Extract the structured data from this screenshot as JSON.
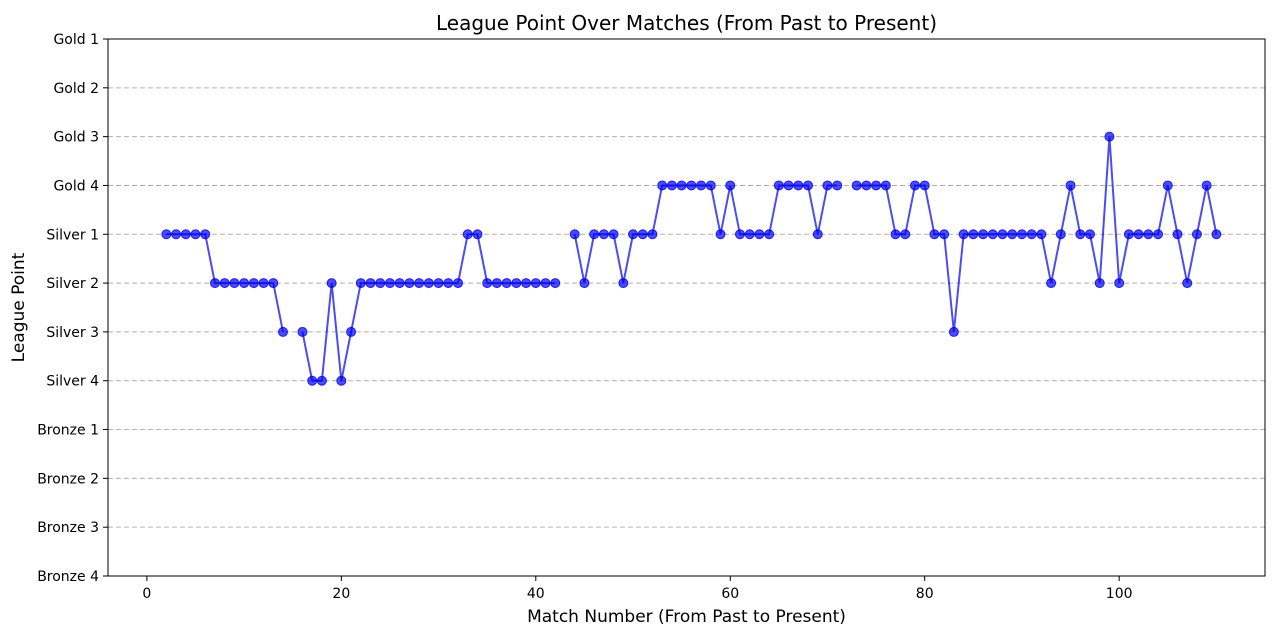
{
  "chart_data": {
    "type": "line",
    "title": "League Point Over Matches (From Past to Present)",
    "xlabel": "Match Number (From Past to Present)",
    "ylabel": "League Point",
    "xlim": [
      -4,
      115
    ],
    "ylim": [
      0,
      11
    ],
    "xticks": [
      0,
      20,
      40,
      60,
      80,
      100
    ],
    "yticks": [
      {
        "value": 0,
        "label": "Bronze 4"
      },
      {
        "value": 1,
        "label": "Bronze 3"
      },
      {
        "value": 2,
        "label": "Bronze 2"
      },
      {
        "value": 3,
        "label": "Bronze 1"
      },
      {
        "value": 4,
        "label": "Silver 4"
      },
      {
        "value": 5,
        "label": "Silver 3"
      },
      {
        "value": 6,
        "label": "Silver 2"
      },
      {
        "value": 7,
        "label": "Silver 1"
      },
      {
        "value": 8,
        "label": "Gold 4"
      },
      {
        "value": 9,
        "label": "Gold 3"
      },
      {
        "value": 10,
        "label": "Gold 2"
      },
      {
        "value": 11,
        "label": "Gold 1"
      }
    ],
    "grid": {
      "y": true,
      "x": false,
      "style": "dashed"
    },
    "series": [
      {
        "color": "#0000ee",
        "marker": "circle",
        "segments": [
          [
            [
              2,
              7
            ],
            [
              3,
              7
            ],
            [
              4,
              7
            ],
            [
              5,
              7
            ],
            [
              6,
              7
            ],
            [
              7,
              6
            ],
            [
              8,
              6
            ],
            [
              9,
              6
            ],
            [
              10,
              6
            ],
            [
              11,
              6
            ],
            [
              12,
              6
            ],
            [
              13,
              6
            ],
            [
              14,
              5
            ]
          ],
          [
            [
              16,
              5
            ],
            [
              17,
              4
            ],
            [
              18,
              4
            ],
            [
              19,
              6
            ],
            [
              20,
              4
            ],
            [
              21,
              5
            ],
            [
              22,
              6
            ],
            [
              23,
              6
            ],
            [
              24,
              6
            ],
            [
              25,
              6
            ],
            [
              26,
              6
            ],
            [
              27,
              6
            ],
            [
              28,
              6
            ],
            [
              29,
              6
            ],
            [
              30,
              6
            ],
            [
              31,
              6
            ],
            [
              32,
              6
            ],
            [
              33,
              7
            ],
            [
              34,
              7
            ],
            [
              35,
              6
            ],
            [
              36,
              6
            ],
            [
              37,
              6
            ],
            [
              38,
              6
            ],
            [
              39,
              6
            ],
            [
              40,
              6
            ],
            [
              41,
              6
            ],
            [
              42,
              6
            ]
          ],
          [
            [
              44,
              7
            ],
            [
              45,
              6
            ],
            [
              46,
              7
            ],
            [
              47,
              7
            ],
            [
              48,
              7
            ],
            [
              49,
              6
            ],
            [
              50,
              7
            ],
            [
              51,
              7
            ],
            [
              52,
              7
            ],
            [
              53,
              8
            ],
            [
              54,
              8
            ],
            [
              55,
              8
            ],
            [
              56,
              8
            ],
            [
              57,
              8
            ],
            [
              58,
              8
            ],
            [
              59,
              7
            ],
            [
              60,
              8
            ],
            [
              61,
              7
            ],
            [
              62,
              7
            ],
            [
              63,
              7
            ],
            [
              64,
              7
            ],
            [
              65,
              8
            ],
            [
              66,
              8
            ],
            [
              67,
              8
            ],
            [
              68,
              8
            ],
            [
              69,
              7
            ],
            [
              70,
              8
            ],
            [
              71,
              8
            ]
          ],
          [
            [
              73,
              8
            ],
            [
              74,
              8
            ],
            [
              75,
              8
            ],
            [
              76,
              8
            ],
            [
              77,
              7
            ],
            [
              78,
              7
            ],
            [
              79,
              8
            ],
            [
              80,
              8
            ],
            [
              81,
              7
            ],
            [
              82,
              7
            ],
            [
              83,
              5
            ],
            [
              84,
              7
            ],
            [
              85,
              7
            ],
            [
              86,
              7
            ],
            [
              87,
              7
            ],
            [
              88,
              7
            ],
            [
              89,
              7
            ],
            [
              90,
              7
            ],
            [
              91,
              7
            ],
            [
              92,
              7
            ],
            [
              93,
              6
            ],
            [
              94,
              7
            ],
            [
              95,
              8
            ],
            [
              96,
              7
            ],
            [
              97,
              7
            ],
            [
              98,
              6
            ],
            [
              99,
              9
            ],
            [
              100,
              6
            ],
            [
              101,
              7
            ],
            [
              102,
              7
            ],
            [
              103,
              7
            ],
            [
              104,
              7
            ],
            [
              105,
              8
            ],
            [
              106,
              7
            ],
            [
              107,
              6
            ],
            [
              108,
              7
            ],
            [
              109,
              8
            ],
            [
              110,
              7
            ]
          ]
        ]
      }
    ]
  }
}
